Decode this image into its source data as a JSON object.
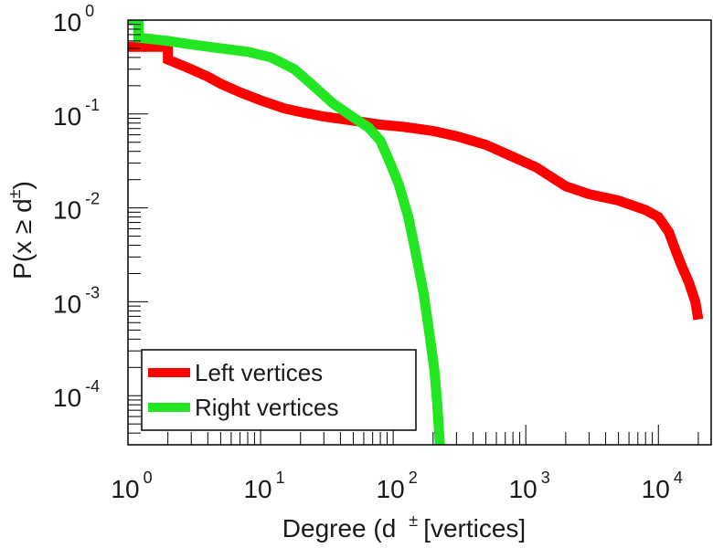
{
  "chart_data": {
    "type": "line",
    "xscale": "log",
    "yscale": "log",
    "xlim": [
      1,
      25000
    ],
    "ylim": [
      3e-05,
      1.0
    ],
    "xlabel": {
      "text": "Degree (d",
      "sup": "±",
      "suffix": "[vertices]"
    },
    "ylabel": {
      "text": "P(x ≥ d",
      "sup": "±",
      "suffix": ")"
    },
    "x_ticks": [
      {
        "value": 1,
        "base": "10",
        "exp": "0"
      },
      {
        "value": 10,
        "base": "10",
        "exp": "1"
      },
      {
        "value": 100,
        "base": "10",
        "exp": "2"
      },
      {
        "value": 1000,
        "base": "10",
        "exp": "3"
      },
      {
        "value": 10000,
        "base": "10",
        "exp": "4"
      }
    ],
    "y_ticks": [
      {
        "value": 1,
        "base": "10",
        "exp": "0"
      },
      {
        "value": 0.1,
        "base": "10",
        "exp": "-1"
      },
      {
        "value": 0.01,
        "base": "10",
        "exp": "-2"
      },
      {
        "value": 0.001,
        "base": "10",
        "exp": "-3"
      },
      {
        "value": 0.0001,
        "base": "10",
        "exp": "-4"
      }
    ],
    "legend_position": "bottom-left",
    "grid": false,
    "series": [
      {
        "name": "Left vertices",
        "color": "#ff0000",
        "points": [
          [
            1,
            0.52
          ],
          [
            2,
            0.52
          ],
          [
            2,
            0.38
          ],
          [
            3,
            0.3
          ],
          [
            4,
            0.25
          ],
          [
            5,
            0.21
          ],
          [
            7,
            0.17
          ],
          [
            10,
            0.14
          ],
          [
            15,
            0.115
          ],
          [
            20,
            0.105
          ],
          [
            30,
            0.094
          ],
          [
            50,
            0.085
          ],
          [
            80,
            0.077
          ],
          [
            120,
            0.073
          ],
          [
            200,
            0.066
          ],
          [
            300,
            0.058
          ],
          [
            500,
            0.047
          ],
          [
            800,
            0.035
          ],
          [
            1200,
            0.027
          ],
          [
            2000,
            0.017
          ],
          [
            3000,
            0.014
          ],
          [
            5000,
            0.012
          ],
          [
            8000,
            0.0095
          ],
          [
            10000,
            0.008
          ],
          [
            12000,
            0.0055
          ],
          [
            13500,
            0.0035
          ],
          [
            15000,
            0.0024
          ],
          [
            17000,
            0.0016
          ],
          [
            19000,
            0.001
          ],
          [
            20000,
            0.00065
          ]
        ]
      },
      {
        "name": "Right vertices",
        "color": "#22e622",
        "points": [
          [
            1,
            1.0
          ],
          [
            1.2,
            1.0
          ],
          [
            1.2,
            0.65
          ],
          [
            2,
            0.6
          ],
          [
            3,
            0.55
          ],
          [
            5,
            0.5
          ],
          [
            8,
            0.46
          ],
          [
            12,
            0.4
          ],
          [
            18,
            0.3
          ],
          [
            25,
            0.2
          ],
          [
            35,
            0.13
          ],
          [
            50,
            0.092
          ],
          [
            65,
            0.072
          ],
          [
            80,
            0.052
          ],
          [
            95,
            0.03
          ],
          [
            110,
            0.018
          ],
          [
            130,
            0.008
          ],
          [
            150,
            0.003
          ],
          [
            170,
            0.0012
          ],
          [
            190,
            0.0004
          ],
          [
            205,
            0.00018
          ],
          [
            215,
            8e-05
          ],
          [
            225,
            3e-05
          ]
        ]
      }
    ]
  }
}
